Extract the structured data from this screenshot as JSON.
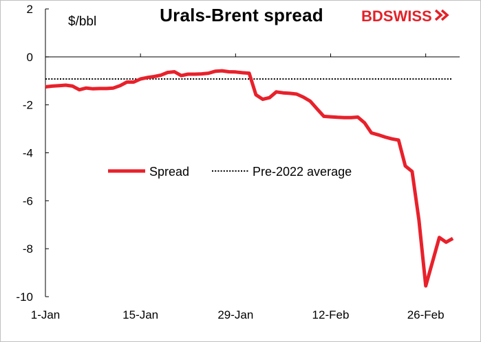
{
  "header": {
    "title": "Urals-Brent spread",
    "unit": "$/bbl",
    "logo_left": "BD",
    "logo_right": "SWISS"
  },
  "chart_data": {
    "type": "line",
    "title": "Urals-Brent spread",
    "ylabel": "$/bbl",
    "ylim": [
      -10,
      2
    ],
    "yticks": [
      2,
      0,
      -2,
      -4,
      -6,
      -8,
      -10
    ],
    "xtick_labels": [
      "1-Jan",
      "15-Jan",
      "29-Jan",
      "12-Feb",
      "26-Feb"
    ],
    "xtick_days": [
      0,
      14,
      28,
      42,
      56
    ],
    "xlim_days": [
      0,
      61
    ],
    "grid": false,
    "legend_placement": "center-left",
    "series": [
      {
        "name": "Spread",
        "color": "#e8212b",
        "style": "solid",
        "x_days": [
          0,
          1,
          2,
          3,
          4,
          5,
          6,
          7,
          8,
          9,
          10,
          11,
          12,
          13,
          14,
          15,
          16,
          17,
          18,
          19,
          20,
          21,
          22,
          23,
          24,
          25,
          26,
          27,
          28,
          29,
          30,
          31,
          32,
          33,
          34,
          35,
          36,
          37,
          38,
          39,
          40,
          41,
          42,
          43,
          44,
          45,
          46,
          47,
          48,
          49,
          50,
          51,
          52,
          53,
          54,
          55,
          56,
          57,
          58,
          59,
          60
        ],
        "values": [
          -1.25,
          -1.22,
          -1.2,
          -1.18,
          -1.22,
          -1.37,
          -1.3,
          -1.33,
          -1.32,
          -1.32,
          -1.3,
          -1.2,
          -1.05,
          -1.05,
          -0.92,
          -0.86,
          -0.82,
          -0.76,
          -0.65,
          -0.62,
          -0.78,
          -0.72,
          -0.72,
          -0.71,
          -0.68,
          -0.6,
          -0.58,
          -0.62,
          -0.63,
          -0.66,
          -0.68,
          -1.58,
          -1.77,
          -1.7,
          -1.46,
          -1.5,
          -1.52,
          -1.55,
          -1.68,
          -1.85,
          -2.17,
          -2.48,
          -2.5,
          -2.52,
          -2.53,
          -2.53,
          -2.51,
          -2.75,
          -3.17,
          -3.25,
          -3.34,
          -3.42,
          -3.47,
          -4.55,
          -4.78,
          -6.8,
          -9.55,
          -8.55,
          -7.53,
          -7.73,
          -7.57
        ]
      },
      {
        "name": "Pre-2022 average",
        "color": "#000000",
        "style": "dotted",
        "x_days": [
          0,
          60
        ],
        "values": [
          -0.92,
          -0.92
        ]
      }
    ]
  }
}
